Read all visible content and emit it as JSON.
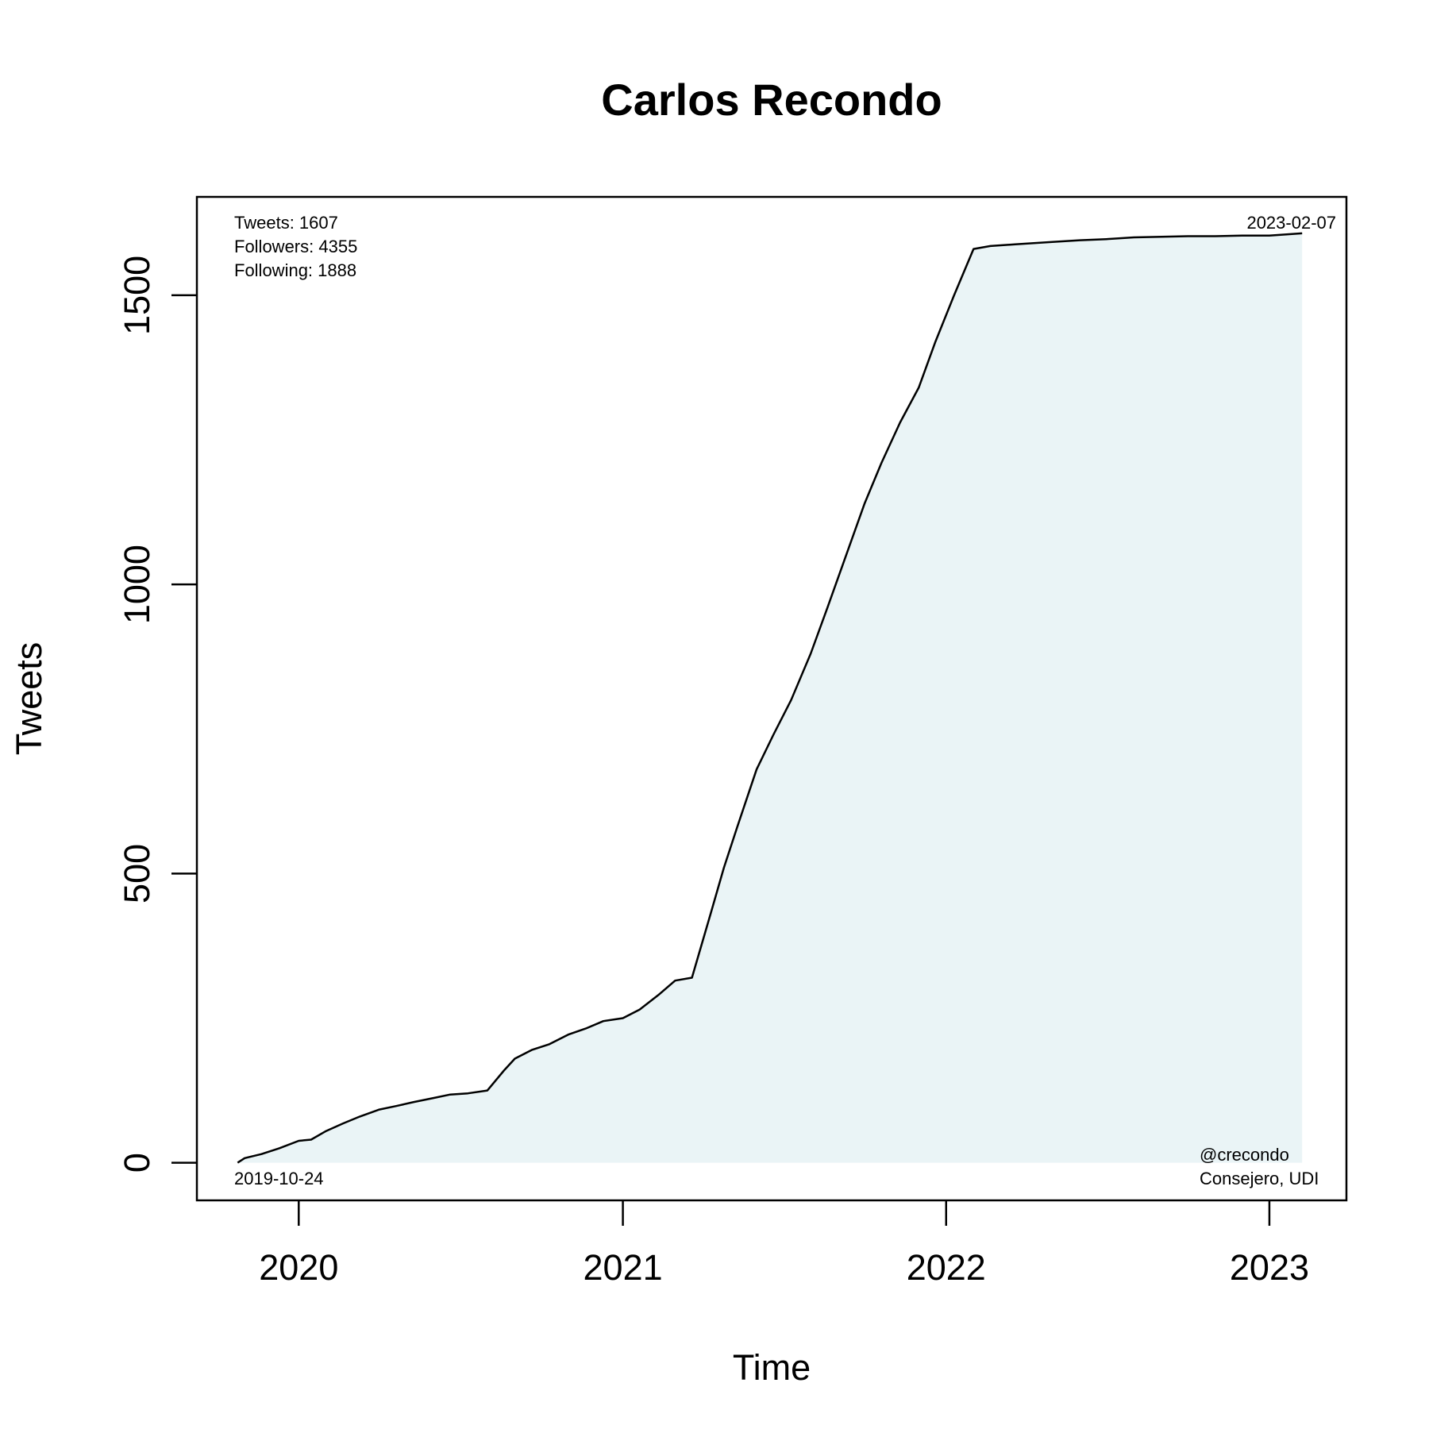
{
  "chart_data": {
    "type": "area",
    "title": "Carlos Recondo",
    "xlabel": "Time",
    "ylabel": "Tweets",
    "x_ticks": [
      "2020",
      "2021",
      "2022",
      "2023"
    ],
    "y_ticks": [
      "0",
      "500",
      "1000",
      "1500"
    ],
    "xlim": [
      "2019-09-08",
      "2023-03-29"
    ],
    "ylim": [
      -65,
      1670
    ],
    "grid": false,
    "legend": "none",
    "fill_color": "#eaf4f6",
    "line_color": "#000000",
    "annotations": {
      "top_left": [
        "Tweets: 1607",
        "Followers: 4355",
        "Following: 1888"
      ],
      "top_right": "2023-02-07",
      "bottom_left": "2019-10-24",
      "bottom_right": [
        "@crecondo",
        "Consejero, UDI"
      ]
    },
    "series": [
      {
        "x": [
          "2019-10-24",
          "2019-11-01",
          "2019-11-20",
          "2019-12-10",
          "2020-01-01",
          "2020-01-15",
          "2020-02-01",
          "2020-02-20",
          "2020-03-10",
          "2020-04-01",
          "2020-04-20",
          "2020-05-10",
          "2020-06-01",
          "2020-06-20",
          "2020-07-10",
          "2020-08-01",
          "2020-08-20",
          "2020-09-01",
          "2020-09-20",
          "2020-10-10",
          "2020-11-01",
          "2020-11-20",
          "2020-12-10",
          "2021-01-01",
          "2021-01-20",
          "2021-02-10",
          "2021-03-01",
          "2021-03-20",
          "2021-04-10",
          "2021-04-25",
          "2021-05-10",
          "2021-06-01",
          "2021-06-20",
          "2021-07-10",
          "2021-08-01",
          "2021-08-20",
          "2021-09-10",
          "2021-10-01",
          "2021-10-20",
          "2021-11-10",
          "2021-12-01",
          "2021-12-20",
          "2022-01-10",
          "2022-02-01",
          "2022-02-20",
          "2022-03-10",
          "2022-03-20",
          "2022-04-10",
          "2022-05-01",
          "2022-06-01",
          "2022-07-01",
          "2022-08-01",
          "2022-09-01",
          "2022-10-01",
          "2022-11-01",
          "2022-12-01",
          "2023-01-01",
          "2023-02-07"
        ],
        "y": [
          0,
          8,
          15,
          25,
          38,
          40,
          55,
          68,
          80,
          92,
          98,
          105,
          112,
          118,
          120,
          125,
          160,
          180,
          195,
          205,
          222,
          232,
          245,
          250,
          265,
          290,
          315,
          320,
          430,
          510,
          580,
          680,
          740,
          800,
          880,
          960,
          1050,
          1140,
          1210,
          1280,
          1340,
          1420,
          1500,
          1580,
          1585,
          1587,
          1588,
          1590,
          1592,
          1595,
          1597,
          1600,
          1601,
          1602,
          1602,
          1603,
          1603,
          1607
        ]
      }
    ]
  }
}
